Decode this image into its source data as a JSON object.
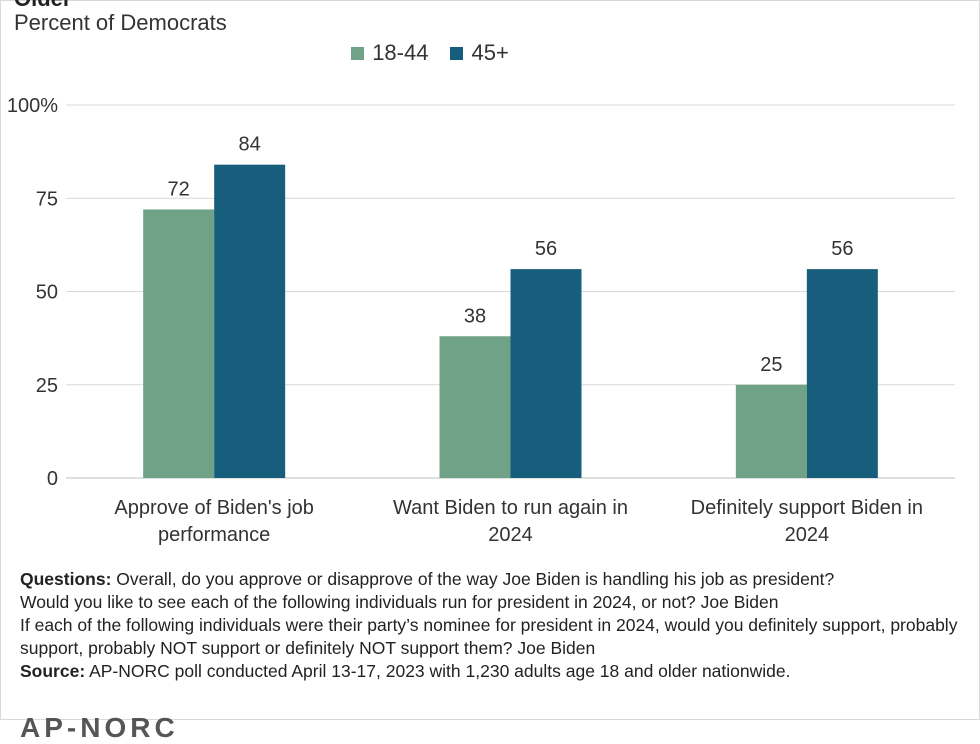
{
  "header": {
    "title_fragment": "Older",
    "subtitle": "Percent of Democrats"
  },
  "chart_data": {
    "type": "bar",
    "categories": [
      "Approve of Biden's job performance",
      "Want Biden to run again in 2024",
      "Definitely support Biden in 2024"
    ],
    "category_lines": [
      [
        "Approve of Biden's job",
        "performance"
      ],
      [
        "Want Biden to run again in",
        "2024"
      ],
      [
        "Definitely support Biden in",
        "2024"
      ]
    ],
    "series": [
      {
        "name": "18-44",
        "values": [
          72,
          38,
          25
        ],
        "color": "#6fa287"
      },
      {
        "name": "45+",
        "values": [
          84,
          56,
          56
        ],
        "color": "#175e7c"
      }
    ],
    "ylim": [
      0,
      100
    ],
    "yticks": [
      0,
      25,
      50,
      75,
      100
    ],
    "ytick_labels": [
      "0",
      "25",
      "50",
      "75",
      "100%"
    ],
    "grid": true,
    "legend_position": "top"
  },
  "notes": {
    "questions_label": "Questions:",
    "q1": "Overall, do you approve or disapprove of the way Joe Biden is handling his job as president?",
    "q2": "Would you like to see each of the following individuals run for president in 2024, or not? Joe Biden",
    "q3": "If each of the following individuals were their party’s nominee for president in 2024, would you definitely support, probably support, probably NOT support or definitely NOT support them? Joe Biden",
    "source_label": "Source:",
    "source_text": "AP-NORC poll conducted April 13-17, 2023 with 1,230 adults age 18 and older nationwide."
  },
  "footer": {
    "logo_fragment": "AP-NORC"
  }
}
